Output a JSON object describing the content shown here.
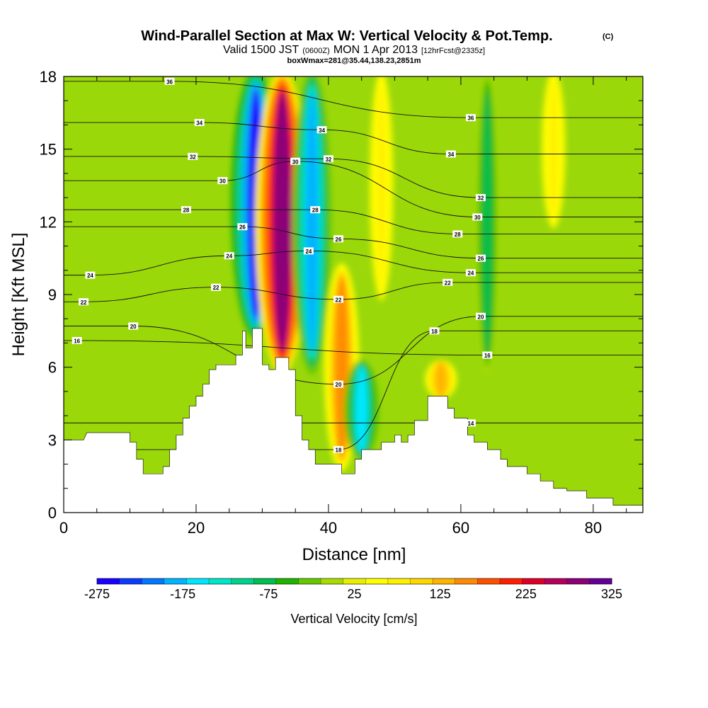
{
  "chart_data": {
    "type": "heatmap",
    "title": "Wind-Parallel Section at Max W: Vertical Velocity & Pot.Temp.",
    "copyright_mark": "(C)",
    "subtitle_parts": [
      "Valid 1500 JST",
      "(0600Z)",
      "MON 1 Apr 2013",
      "[12hrFcst@2335z]"
    ],
    "subtitle2": "boxWmax=281@35.44,138.23,2851m",
    "xlabel": "Distance [nm]",
    "ylabel": "Height [Kft MSL]",
    "xlim": [
      0,
      87.5
    ],
    "ylim": [
      0,
      18
    ],
    "xticks": [
      0,
      20,
      40,
      60,
      80
    ],
    "yticks": [
      0,
      3,
      6,
      9,
      12,
      15,
      18
    ],
    "colorbar": {
      "label": "Vertical Velocity [cm/s]",
      "tick_values": [
        -275,
        -175,
        -75,
        25,
        125,
        225,
        325
      ],
      "colors": [
        "#1a00ff",
        "#0a3cff",
        "#0078ff",
        "#00b4ff",
        "#00e6ff",
        "#00e6c8",
        "#00d28c",
        "#00be50",
        "#20b400",
        "#64c800",
        "#a8dc00",
        "#e6f000",
        "#ffff00",
        "#fff000",
        "#ffd700",
        "#ffb400",
        "#ff8c00",
        "#ff5000",
        "#ff1e00",
        "#dc0028",
        "#b4005a",
        "#8c0078",
        "#640096"
      ]
    },
    "velocity_features": [
      {
        "x": 29,
        "y_base": 7.5,
        "y_top": 18,
        "w_cm_s": -250
      },
      {
        "x": 33,
        "y_base": 6.0,
        "y_top": 18,
        "w_cm_s": 281
      },
      {
        "x": 37.5,
        "y_base": 6.0,
        "y_top": 18,
        "w_cm_s": -175
      },
      {
        "x": 42,
        "y_base": 2.0,
        "y_top": 10,
        "w_cm_s": 150
      },
      {
        "x": 45,
        "y_base": 2.5,
        "y_top": 6,
        "w_cm_s": -150
      },
      {
        "x": 48,
        "y_base": 9.0,
        "y_top": 18,
        "w_cm_s": 75
      },
      {
        "x": 57,
        "y_base": 5.0,
        "y_top": 6,
        "w_cm_s": 125
      },
      {
        "x": 64,
        "y_base": 6.0,
        "y_top": 18,
        "w_cm_s": -75
      },
      {
        "x": 74,
        "y_base": 12.0,
        "y_top": 18,
        "w_cm_s": 75
      }
    ],
    "terrain_profile": [
      [
        0,
        3.0
      ],
      [
        3,
        3.0
      ],
      [
        3.5,
        3.3
      ],
      [
        10,
        3.3
      ],
      [
        10,
        2.9
      ],
      [
        11,
        2.9
      ],
      [
        11,
        2.2
      ],
      [
        12,
        2.2
      ],
      [
        12,
        1.6
      ],
      [
        15,
        1.6
      ],
      [
        15,
        1.9
      ],
      [
        16,
        1.9
      ],
      [
        16,
        2.6
      ],
      [
        17,
        2.6
      ],
      [
        17,
        3.2
      ],
      [
        18,
        3.2
      ],
      [
        18,
        3.9
      ],
      [
        19,
        3.9
      ],
      [
        19,
        4.4
      ],
      [
        20,
        4.4
      ],
      [
        20,
        4.8
      ],
      [
        21,
        4.8
      ],
      [
        21,
        5.3
      ],
      [
        22,
        5.3
      ],
      [
        22,
        5.9
      ],
      [
        23,
        5.9
      ],
      [
        23,
        6.1
      ],
      [
        26,
        6.1
      ],
      [
        26,
        6.5
      ],
      [
        27,
        6.5
      ],
      [
        27,
        7.5
      ],
      [
        27.5,
        7.5
      ],
      [
        27.5,
        6.8
      ],
      [
        28.5,
        6.8
      ],
      [
        28.5,
        7.6
      ],
      [
        30,
        7.6
      ],
      [
        30,
        6.1
      ],
      [
        31,
        6.1
      ],
      [
        31,
        5.9
      ],
      [
        32,
        5.9
      ],
      [
        32,
        6.4
      ],
      [
        34,
        6.4
      ],
      [
        34,
        5.9
      ],
      [
        35,
        5.9
      ],
      [
        35,
        4.0
      ],
      [
        36,
        4.0
      ],
      [
        36,
        3.0
      ],
      [
        37,
        3.0
      ],
      [
        37,
        2.6
      ],
      [
        38,
        2.6
      ],
      [
        38,
        2.0
      ],
      [
        42,
        2.0
      ],
      [
        42,
        1.6
      ],
      [
        44,
        1.6
      ],
      [
        44,
        2.2
      ],
      [
        45,
        2.2
      ],
      [
        45,
        2.6
      ],
      [
        48,
        2.6
      ],
      [
        48,
        2.9
      ],
      [
        50,
        2.9
      ],
      [
        50,
        3.2
      ],
      [
        51,
        3.2
      ],
      [
        51,
        2.9
      ],
      [
        52,
        2.9
      ],
      [
        52,
        3.2
      ],
      [
        53,
        3.2
      ],
      [
        53,
        3.8
      ],
      [
        55,
        3.8
      ],
      [
        55,
        4.8
      ],
      [
        58,
        4.8
      ],
      [
        58,
        4.3
      ],
      [
        59,
        4.3
      ],
      [
        59,
        3.9
      ],
      [
        61,
        3.9
      ],
      [
        61,
        3.2
      ],
      [
        62,
        3.2
      ],
      [
        62,
        2.9
      ],
      [
        64,
        2.9
      ],
      [
        64,
        2.6
      ],
      [
        66,
        2.6
      ],
      [
        66,
        2.2
      ],
      [
        67,
        2.2
      ],
      [
        67,
        1.9
      ],
      [
        70,
        1.9
      ],
      [
        70,
        1.6
      ],
      [
        72,
        1.6
      ],
      [
        72,
        1.3
      ],
      [
        74,
        1.3
      ],
      [
        74,
        1.0
      ],
      [
        76,
        1.0
      ],
      [
        76,
        0.9
      ],
      [
        79,
        0.9
      ],
      [
        79,
        0.6
      ],
      [
        83,
        0.6
      ],
      [
        83,
        0.3
      ],
      [
        87.5,
        0.3
      ]
    ],
    "theta_contours": [
      {
        "label": "14",
        "x": 61.5,
        "y": 3.7
      },
      {
        "label": "16",
        "x": 64,
        "y": 6.5
      },
      {
        "label": "16",
        "x": 2,
        "y": 7.1
      },
      {
        "label": "18",
        "x": 41.5,
        "y": 2.6
      },
      {
        "label": "18",
        "x": 56,
        "y": 7.5
      },
      {
        "label": "20",
        "x": 10.5,
        "y": 7.7
      },
      {
        "label": "20",
        "x": 41.5,
        "y": 5.3
      },
      {
        "label": "20",
        "x": 63,
        "y": 8.1
      },
      {
        "label": "22",
        "x": 3,
        "y": 8.7
      },
      {
        "label": "22",
        "x": 23,
        "y": 9.3
      },
      {
        "label": "22",
        "x": 41.5,
        "y": 8.8
      },
      {
        "label": "22",
        "x": 58,
        "y": 9.5
      },
      {
        "label": "24",
        "x": 4,
        "y": 9.8
      },
      {
        "label": "24",
        "x": 25,
        "y": 10.6
      },
      {
        "label": "24",
        "x": 37,
        "y": 10.8
      },
      {
        "label": "24",
        "x": 61.5,
        "y": 9.9
      },
      {
        "label": "26",
        "x": 27,
        "y": 11.8
      },
      {
        "label": "26",
        "x": 41.5,
        "y": 11.3
      },
      {
        "label": "26",
        "x": 63,
        "y": 10.5
      },
      {
        "label": "28",
        "x": 18.5,
        "y": 12.5
      },
      {
        "label": "28",
        "x": 38,
        "y": 12.5
      },
      {
        "label": "28",
        "x": 59.5,
        "y": 11.5
      },
      {
        "label": "30",
        "x": 24,
        "y": 13.7
      },
      {
        "label": "30",
        "x": 35,
        "y": 14.5
      },
      {
        "label": "30",
        "x": 62.5,
        "y": 12.2
      },
      {
        "label": "32",
        "x": 19.5,
        "y": 14.7
      },
      {
        "label": "32",
        "x": 40,
        "y": 14.6
      },
      {
        "label": "32",
        "x": 63,
        "y": 13.0
      },
      {
        "label": "34",
        "x": 20.5,
        "y": 16.1
      },
      {
        "label": "34",
        "x": 39,
        "y": 15.8
      },
      {
        "label": "34",
        "x": 58.5,
        "y": 14.8
      },
      {
        "label": "36",
        "x": 16,
        "y": 17.8
      },
      {
        "label": "36",
        "x": 61.5,
        "y": 16.3
      }
    ]
  }
}
